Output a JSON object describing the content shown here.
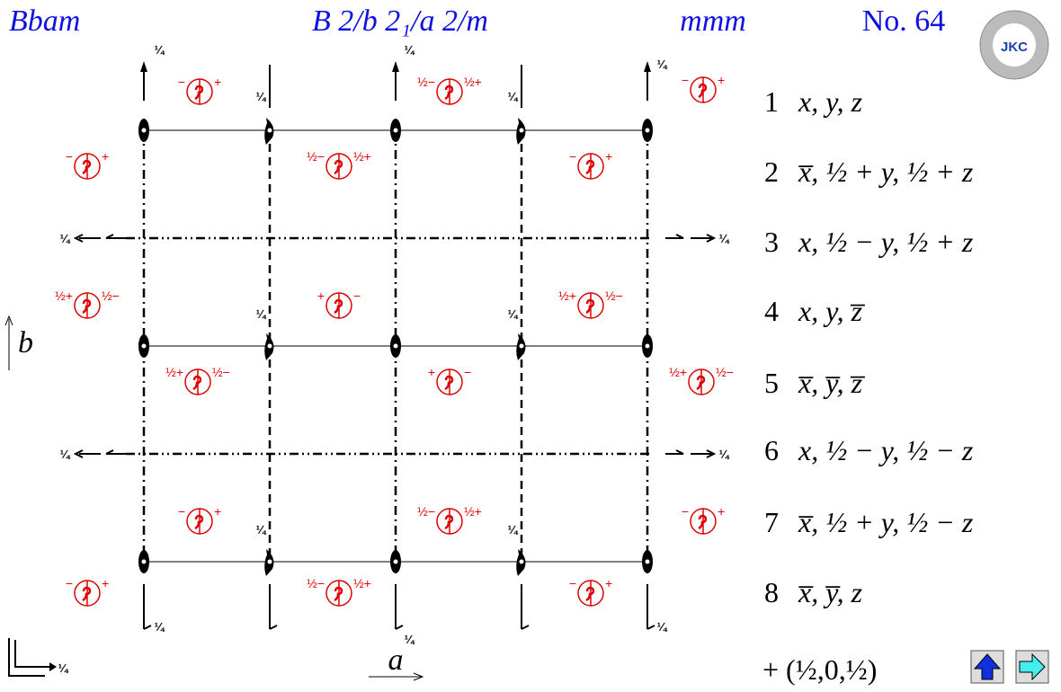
{
  "header": {
    "symbol": "Bbam",
    "full_symbol": "B 2/b 2₁/a 2/m",
    "point_group": "mmm",
    "number": "No. 64",
    "logo": "JKC"
  },
  "axes": {
    "a": "a",
    "b": "b"
  },
  "quarter_labels": [
    "¼",
    "¼",
    "¼",
    "¼",
    "¼",
    "¼",
    "¼",
    "¼",
    "¼",
    "¼",
    "¼",
    "¼",
    "¼",
    "¼",
    "¼",
    "¼",
    "¼"
  ],
  "symbols": [
    {
      "left": "−",
      "right": "+"
    },
    {
      "left": "½−",
      "right": "½+"
    },
    {
      "left": "−",
      "right": "+"
    },
    {
      "left": "−",
      "right": "+"
    },
    {
      "left": "½−",
      "right": "½+"
    },
    {
      "left": "−",
      "right": "+"
    },
    {
      "left": "½+",
      "right": "½−"
    },
    {
      "left": "+",
      "right": "−"
    },
    {
      "left": "½+",
      "right": "½−"
    },
    {
      "left": "½+",
      "right": "½−"
    },
    {
      "left": "+",
      "right": "−"
    },
    {
      "left": "½+",
      "right": "½−"
    },
    {
      "left": "−",
      "right": "+"
    },
    {
      "left": "½−",
      "right": "½+"
    },
    {
      "left": "−",
      "right": "+"
    },
    {
      "left": "−",
      "right": "+"
    },
    {
      "left": "½−",
      "right": "½+"
    },
    {
      "left": "−",
      "right": "+"
    }
  ],
  "positions": [
    {
      "number": "1",
      "coords": "x, y, z"
    },
    {
      "number": "2",
      "coords": "x̅, ½ + y, ½ + z"
    },
    {
      "number": "3",
      "coords": "x, ½ − y, ½ + z"
    },
    {
      "number": "4",
      "coords": "x, y, z̅"
    },
    {
      "number": "5",
      "coords": "x̅, y̅, z̅"
    },
    {
      "number": "6",
      "coords": "x, ½ − y, ½ − z"
    },
    {
      "number": "7",
      "coords": "x̅, ½ + y, ½ − z"
    },
    {
      "number": "8",
      "coords": "x̅, y̅, z"
    }
  ],
  "centering": "+ (½,0,½)"
}
